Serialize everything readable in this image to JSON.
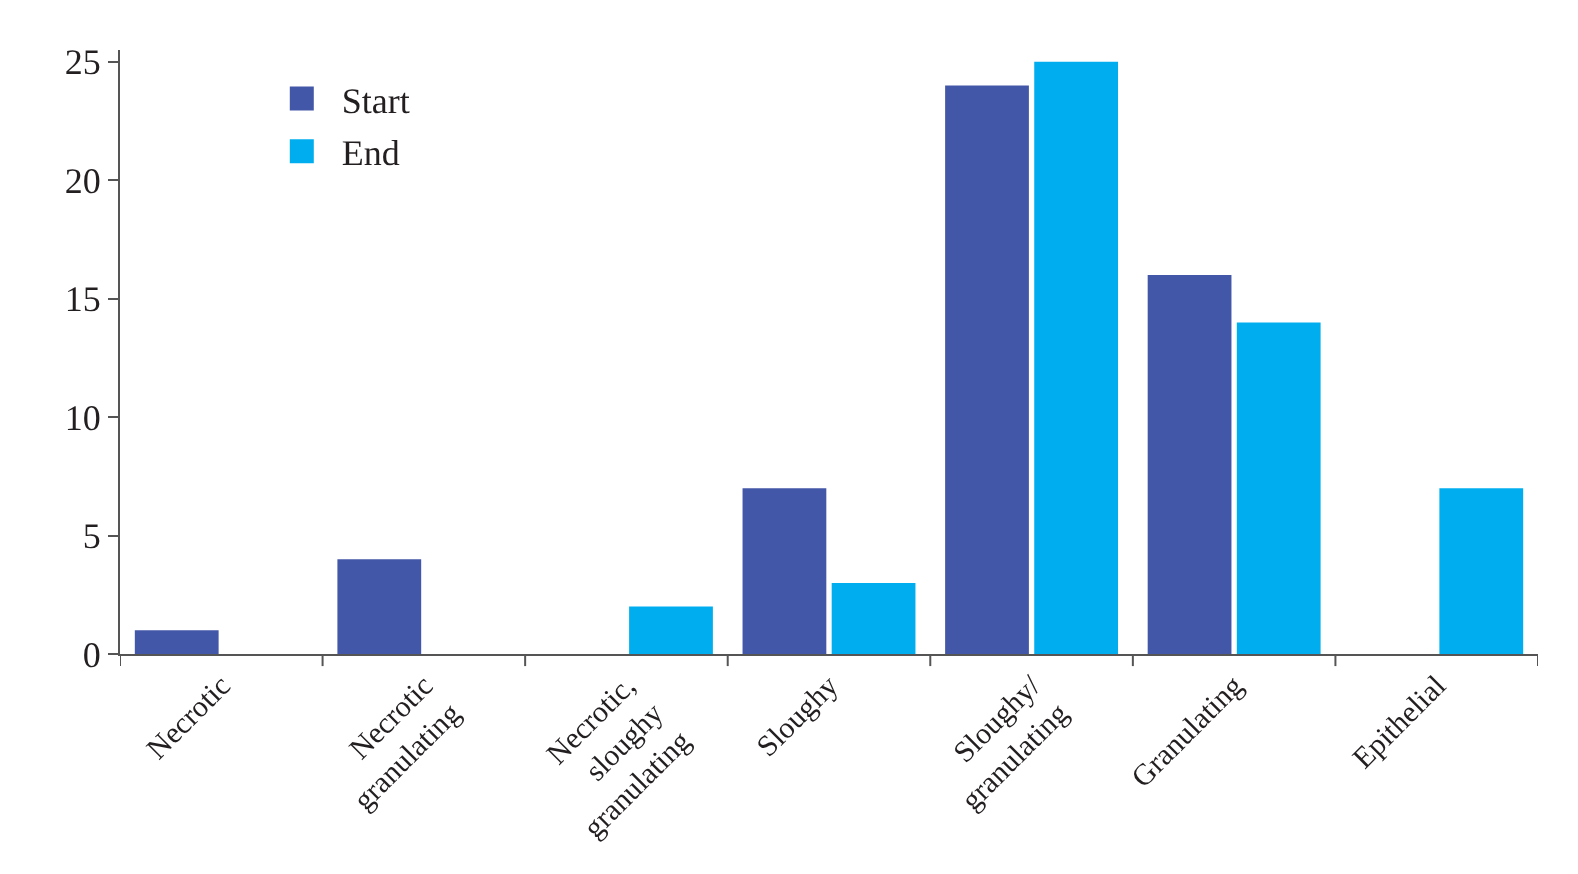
{
  "chart_data": {
    "type": "bar",
    "categories": [
      "Necrotic",
      "Necrotic\ngranulating",
      "Necrotic,\nsloughy\ngranulating",
      "Sloughy",
      "Sloughy/\ngranulating",
      "Granulating",
      "Epithelial"
    ],
    "series": [
      {
        "name": "Start",
        "color": "#4357a8",
        "values": [
          1,
          4,
          0,
          7,
          24,
          16,
          0
        ]
      },
      {
        "name": "End",
        "color": "#00aeef",
        "values": [
          0,
          0,
          2,
          3,
          25,
          14,
          7
        ]
      }
    ],
    "ylim": [
      0,
      25.5
    ],
    "yticks": [
      0,
      5,
      10,
      15,
      20,
      25
    ],
    "legend": "top left"
  }
}
